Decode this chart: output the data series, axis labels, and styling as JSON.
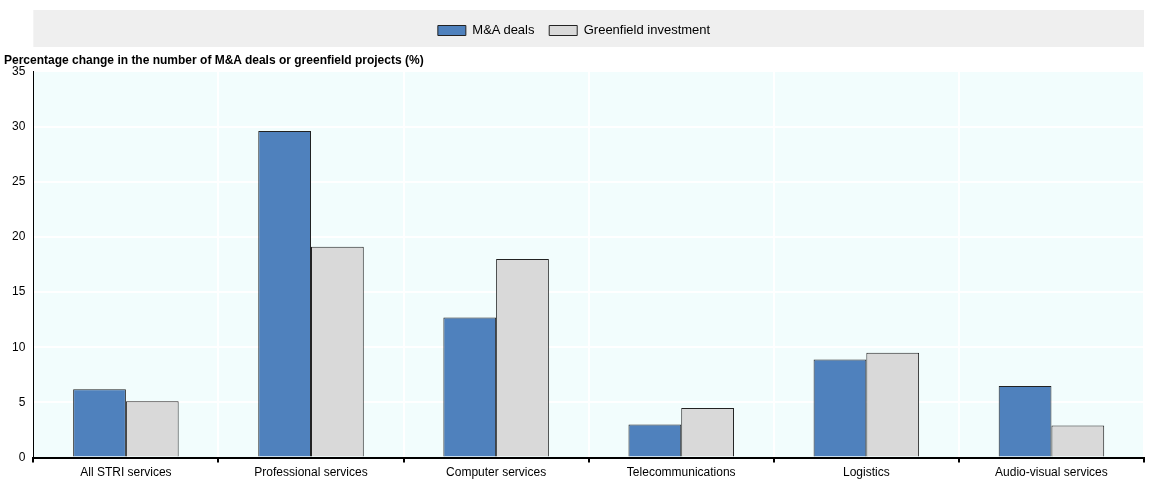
{
  "chart_data": {
    "type": "bar",
    "ylabel": "Percentage change in the number of M&A deals or greenfield projects (%)",
    "categories": [
      "All STRI services",
      "Professional services",
      "Computer services",
      "Telecommunications",
      "Logistics",
      "Audio-visual services"
    ],
    "series": [
      {
        "name": "M&A deals",
        "color": "#4f81bd",
        "values": [
          6.2,
          29.6,
          12.7,
          3.0,
          8.9,
          6.5
        ]
      },
      {
        "name": "Greenfield investment",
        "color": "#d9d9d9",
        "values": [
          5.1,
          19.1,
          18.0,
          4.5,
          9.5,
          2.9
        ]
      }
    ],
    "ylim": [
      0,
      35
    ],
    "yticks": [
      0,
      5,
      10,
      15,
      20,
      25,
      30,
      35
    ],
    "grid": true,
    "legend": "top"
  }
}
